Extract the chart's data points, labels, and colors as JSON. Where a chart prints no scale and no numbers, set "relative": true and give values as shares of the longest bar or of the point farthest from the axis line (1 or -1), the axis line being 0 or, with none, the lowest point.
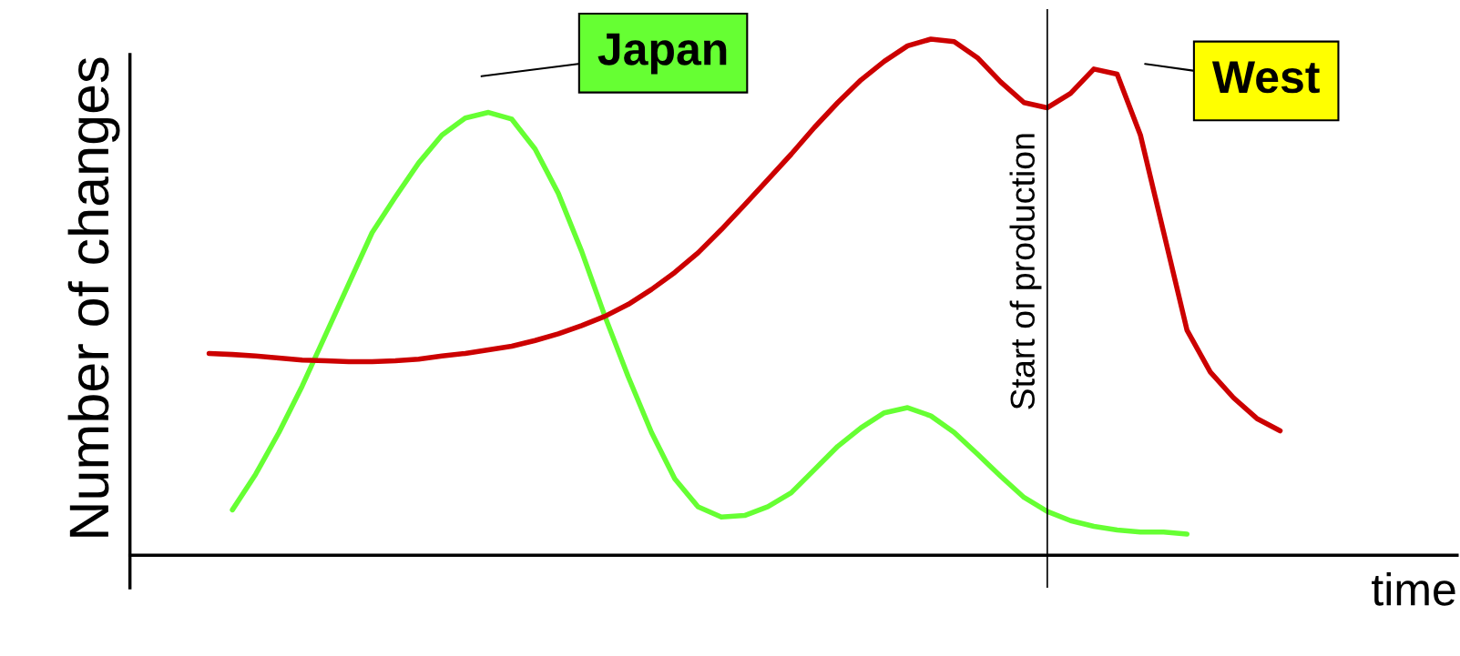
{
  "chart_data": {
    "type": "line",
    "relative": true,
    "xlabel": "time",
    "ylabel": "Number of changes",
    "categories": [
      null,
      null,
      null,
      null,
      null,
      null,
      null,
      null,
      null,
      null,
      null,
      null,
      null,
      null,
      null,
      null,
      null,
      null,
      null,
      null,
      null,
      null,
      null,
      null,
      null,
      null,
      null,
      null,
      null,
      null,
      null,
      null,
      null,
      null,
      null,
      null,
      null,
      null,
      null,
      null,
      null,
      null,
      null,
      null,
      null,
      null,
      null
    ],
    "series": [
      {
        "name": "Japan",
        "color": "#66ff33",
        "values": [
          null,
          0.088,
          0.157,
          0.238,
          0.328,
          0.427,
          0.526,
          0.625,
          0.694,
          0.76,
          0.814,
          0.847,
          0.858,
          0.845,
          0.787,
          0.701,
          0.589,
          0.463,
          0.346,
          0.238,
          0.148,
          0.094,
          0.074,
          0.077,
          0.094,
          0.121,
          0.166,
          0.211,
          0.247,
          0.276,
          0.286,
          0.27,
          0.238,
          0.196,
          0.153,
          0.112,
          0.085,
          0.067,
          0.056,
          0.049,
          0.045,
          0.045,
          0.041,
          null,
          null,
          null,
          null
        ]
      },
      {
        "name": "West",
        "color": "#cc0000",
        "values": [
          0.391,
          0.389,
          0.386,
          0.382,
          0.378,
          0.377,
          0.375,
          0.375,
          0.377,
          0.38,
          0.386,
          0.391,
          0.398,
          0.405,
          0.416,
          0.429,
          0.445,
          0.463,
          0.486,
          0.515,
          0.548,
          0.586,
          0.631,
          0.679,
          0.728,
          0.777,
          0.829,
          0.877,
          0.921,
          0.957,
          0.987,
          1,
          0.995,
          0.964,
          0.917,
          0.877,
          0.867,
          0.895,
          0.942,
          0.932,
          0.814,
          0.625,
          0.436,
          0.355,
          0.305,
          0.265,
          0.241
        ]
      }
    ],
    "annotations": [
      "Start of production"
    ],
    "legend": false,
    "grid": false,
    "marker": "none",
    "line_style": "solid"
  }
}
